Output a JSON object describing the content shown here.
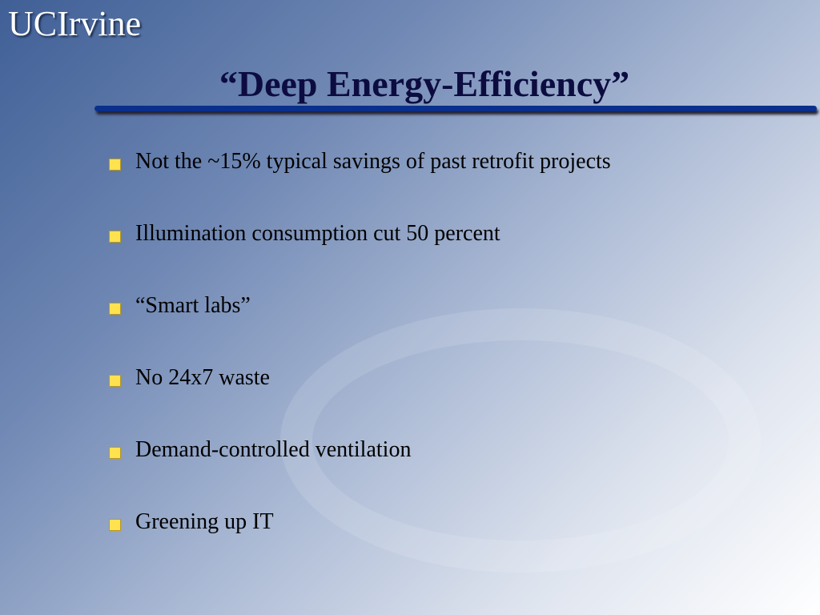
{
  "header": {
    "logo": "UCIrvine",
    "title": "“Deep Energy-Efficiency”"
  },
  "bullets": [
    "Not the ~15% typical savings of past retrofit projects",
    "Illumination consumption cut 50 percent",
    "“Smart labs”",
    "No 24x7 waste",
    "Demand-controlled ventilation",
    "Greening up IT"
  ]
}
